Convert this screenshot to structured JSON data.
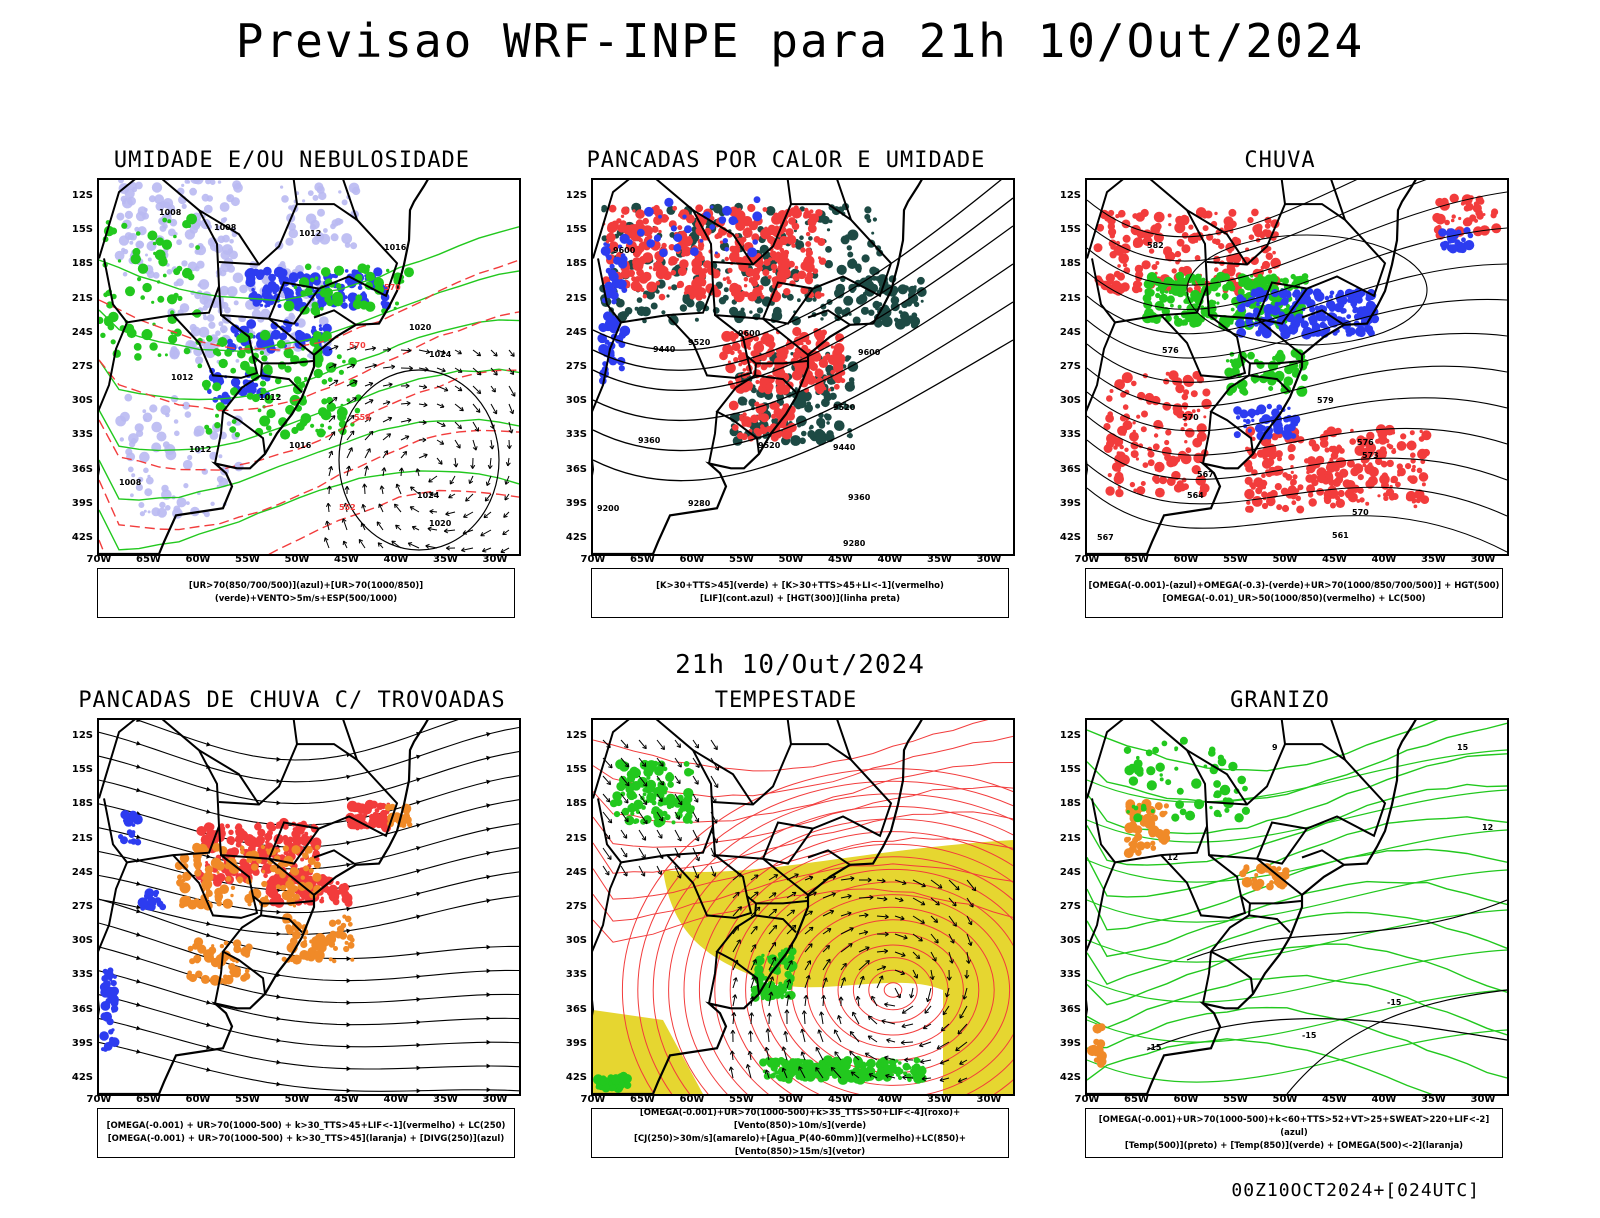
{
  "main_title": "Previsao WRF-INPE  para 21h 10/Out/2024",
  "mid_title": "21h 10/Out/2024",
  "footer": "00Z10OCT2024+[024UTC]",
  "lat_labels": [
    "12S",
    "15S",
    "18S",
    "21S",
    "24S",
    "27S",
    "30S",
    "33S",
    "36S",
    "39S",
    "42S"
  ],
  "lon_labels": [
    "70W",
    "65W",
    "60W",
    "55W",
    "50W",
    "45W",
    "40W",
    "35W",
    "30W"
  ],
  "colors": {
    "red": "#f23c3c",
    "green": "#22c81e",
    "blue": "#2d3cf0",
    "lightblue": "#b9b9f2",
    "orange": "#f08a28",
    "yellow": "#e6d630",
    "darkteal": "#1d4a44",
    "black": "#000000"
  },
  "panels": [
    {
      "id": "umidade",
      "title": "UMIDADE E/OU NEBULOSIDADE",
      "legend": [
        "[UR>70(850/700/500)](azul)+[UR>70(1000/850)](verde)+VENTO>5m/s+ESP(500/1000)"
      ],
      "contour_labels": [
        "1008",
        "1008",
        "1012",
        "1016",
        "1020",
        "1024",
        "1012",
        "1012",
        "1008",
        "1012",
        "1024",
        "1020",
        "1016",
        "570",
        "570",
        "558",
        "552"
      ]
    },
    {
      "id": "pancadas-calor",
      "title": "PANCADAS POR CALOR E UMIDADE",
      "legend": [
        "[K>30+TTS>45](verde)  +  [K>30+TTS>45+LI<-1](vermelho)",
        "[LIF](cont.azul)  +  [HGT(300)](linha preta)"
      ],
      "contour_labels": [
        "9600",
        "9520",
        "9440",
        "9360",
        "9280",
        "9200",
        "9600",
        "9520",
        "9440",
        "9360",
        "9280",
        "9600",
        "9520"
      ]
    },
    {
      "id": "chuva",
      "title": "CHUVA",
      "legend": [
        "[OMEGA(-0.001)-(azul)+OMEGA(-0.3)-(verde)+UR>70(1000/850/700/500)]  +  HGT(500)",
        "[OMEGA(-0.01)_UR>50(1000/850)(vermelho)  +  LC(500)"
      ],
      "contour_labels": [
        "582",
        "576",
        "570",
        "567",
        "564",
        "573",
        "576",
        "570",
        "567",
        "561",
        "579"
      ]
    },
    {
      "id": "pancadas-trovoadas",
      "title": "PANCADAS DE CHUVA C/ TROVOADAS",
      "legend": [
        "[OMEGA(-0.001)  +  UR>70(1000-500)  +  k>30_TTS>45+LIF<-1](vermelho)  +  LC(250)",
        "[OMEGA(-0.001)  +  UR>70(1000-500)  +  k>30_TTS>45](laranja)  +  [DIVG(250)](azul)"
      ],
      "contour_labels": []
    },
    {
      "id": "tempestade",
      "title": "TEMPESTADE",
      "legend": [
        "[OMEGA(-0.001)+UR>70(1000-500)+k>35_TTS>50+LIF<-4](roxo)+[Vento(850)>10m/s](verde)",
        "[CJ(250)>30m/s](amarelo)+[Agua_P(40-60mm)](vermelho)+LC(850)+[Vento(850)>15m/s](vetor)"
      ],
      "contour_labels": []
    },
    {
      "id": "granizo",
      "title": "GRANIZO",
      "legend": [
        "[OMEGA(-0.001)+UR>70(1000-500)+k<60+TTS>52+VT>25+SWEAT>220+LIF<-2](azul)",
        "[Temp(500)](preto)  +  [Temp(850)](verde)  +  [OMEGA(500)<-2](laranja)"
      ],
      "contour_labels": [
        "-15",
        "-15",
        "-15",
        "12",
        "12",
        "15",
        "9"
      ]
    }
  ]
}
